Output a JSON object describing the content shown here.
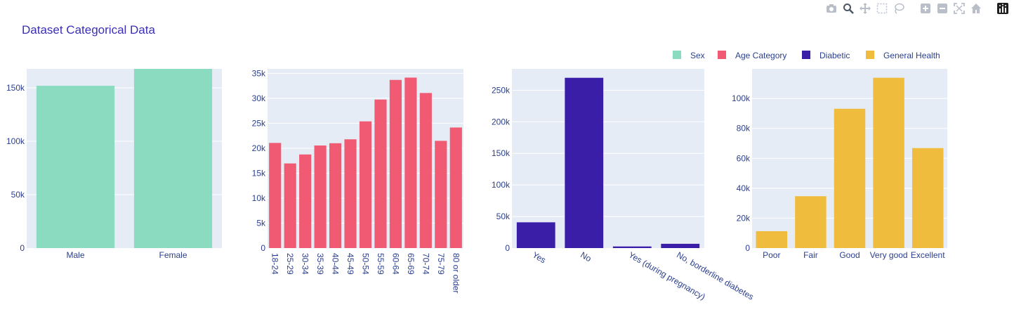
{
  "title": "Dataset Categorical Data",
  "modebar": {
    "icons": [
      "camera-icon",
      "zoom-icon",
      "pan-icon",
      "box-select-icon",
      "lasso-select-icon",
      "zoom-in-icon",
      "zoom-out-icon",
      "autoscale-icon",
      "reset-axes-icon",
      "plotly-logo-icon"
    ]
  },
  "colors": {
    "text": "#2a3f8f",
    "title": "#3b2fb5",
    "plot_bg": "#e5ecf6",
    "grid": "#ffffff"
  },
  "chart_data": [
    {
      "type": "bar",
      "name": "Sex",
      "color": "#8bdbc0",
      "categories": [
        "Male",
        "Female"
      ],
      "values": [
        151990,
        167805
      ],
      "ylim": [
        0,
        167805
      ],
      "yticks": [
        0,
        50000,
        100000,
        150000
      ],
      "ytick_labels": [
        "0",
        "50k",
        "100k",
        "150k"
      ],
      "xtick_angle": 0
    },
    {
      "type": "bar",
      "name": "Age Category",
      "color": "#f05a73",
      "categories": [
        "18-24",
        "25-29",
        "30-34",
        "35-39",
        "40-44",
        "45-49",
        "50-54",
        "55-59",
        "60-64",
        "65-69",
        "70-74",
        "75-79",
        "80 or older"
      ],
      "values": [
        21064,
        16955,
        18753,
        20550,
        21006,
        21791,
        25382,
        29757,
        33686,
        34151,
        31065,
        21482,
        24153
      ],
      "ylim": [
        0,
        35900
      ],
      "yticks": [
        0,
        5000,
        10000,
        15000,
        20000,
        25000,
        30000,
        35000
      ],
      "ytick_labels": [
        "0",
        "5k",
        "10k",
        "15k",
        "20k",
        "25k",
        "30k",
        "35k"
      ],
      "xtick_angle": 90
    },
    {
      "type": "bar",
      "name": "Diabetic",
      "color": "#3a1ea8",
      "categories": [
        "Yes",
        "No",
        "Yes (during pregnancy)",
        "No, borderline diabetes"
      ],
      "values": [
        40802,
        269653,
        2559,
        6781
      ],
      "ylim": [
        0,
        283800
      ],
      "yticks": [
        0,
        50000,
        100000,
        150000,
        200000,
        250000
      ],
      "ytick_labels": [
        "0",
        "50k",
        "100k",
        "150k",
        "200k",
        "250k"
      ],
      "xtick_angle": 30
    },
    {
      "type": "bar",
      "name": "General Health",
      "color": "#f0bc3e",
      "categories": [
        "Poor",
        "Fair",
        "Good",
        "Very good",
        "Excellent"
      ],
      "values": [
        11289,
        34677,
        93129,
        113858,
        66842
      ],
      "ylim": [
        0,
        119800
      ],
      "yticks": [
        0,
        20000,
        40000,
        60000,
        80000,
        100000
      ],
      "ytick_labels": [
        "0",
        "20k",
        "40k",
        "60k",
        "80k",
        "100k"
      ],
      "xtick_angle": 0
    }
  ]
}
